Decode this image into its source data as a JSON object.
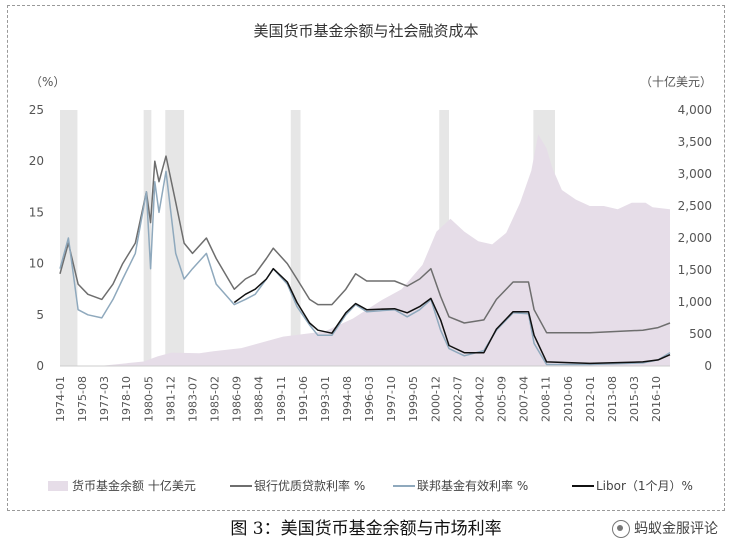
{
  "chart_data": {
    "type": "line",
    "title": "美国货币基金余额与社会融资成本",
    "left_axis": {
      "unit": "（%）",
      "ylim": [
        0,
        25
      ],
      "ticks": [
        "0",
        "5",
        "10",
        "15",
        "20",
        "25"
      ]
    },
    "right_axis": {
      "unit": "（十亿美元）",
      "ylim": [
        0,
        4000
      ],
      "ticks": [
        "0",
        "500",
        "1,000",
        "1,500",
        "2,000",
        "2,500",
        "3,000",
        "3,500",
        "4,000"
      ]
    },
    "x_ticks": [
      "1974-01",
      "1975-08",
      "1977-03",
      "1978-10",
      "1980-05",
      "1981-12",
      "1983-07",
      "1985-02",
      "1986-09",
      "1988-04",
      "1989-11",
      "1991-06",
      "1993-01",
      "1994-08",
      "1996-03",
      "1997-10",
      "1999-05",
      "2000-12",
      "2002-07",
      "2004-02",
      "2005-09",
      "2007-04",
      "2008-11",
      "2010-06",
      "2012-01",
      "2013-08",
      "2015-03",
      "2016-10"
    ],
    "x_range": [
      1974.0,
      2017.75
    ],
    "recession_bands": [
      [
        1974.0,
        1975.25
      ],
      [
        1980.0,
        1980.55
      ],
      [
        1981.55,
        1982.9
      ],
      [
        1990.55,
        1991.25
      ],
      [
        2001.2,
        2001.9
      ],
      [
        2007.95,
        2009.5
      ]
    ],
    "series": [
      {
        "name": "货币基金余额 十亿美元",
        "type": "area",
        "axis": "right",
        "color": "#e6dde8",
        "x": [
          1974,
          1977,
          1980,
          1981,
          1982,
          1984,
          1985,
          1987,
          1990,
          1993,
          1995,
          1997,
          1998.5,
          2000,
          2001,
          2002,
          2003,
          2004,
          2005,
          2006,
          2007,
          2007.8,
          2008.3,
          2008.9,
          2009.3,
          2010,
          2011,
          2012,
          2013,
          2014,
          2015,
          2016,
          2016.5,
          2017.75
        ],
        "values": [
          2,
          5,
          70,
          150,
          210,
          200,
          230,
          280,
          460,
          540,
          740,
          1020,
          1200,
          1580,
          2100,
          2300,
          2100,
          1950,
          1900,
          2080,
          2550,
          3050,
          3620,
          3400,
          3100,
          2750,
          2600,
          2500,
          2500,
          2450,
          2550,
          2550,
          2480,
          2450
        ]
      },
      {
        "name": "银行优质贷款利率 %",
        "type": "line",
        "axis": "left",
        "color": "#6e6e6e",
        "x": [
          1974,
          1974.6,
          1975.3,
          1976,
          1977,
          1977.8,
          1978.5,
          1979.4,
          1980.2,
          1980.5,
          1980.8,
          1981.1,
          1981.6,
          1982.3,
          1982.9,
          1983.5,
          1984.5,
          1985.2,
          1986.5,
          1987.3,
          1988,
          1988.8,
          1989.3,
          1990.3,
          1991,
          1991.9,
          1992.5,
          1993.5,
          1994.5,
          1995.2,
          1996,
          1998,
          1998.9,
          1999.8,
          2000.6,
          2001.3,
          2001.9,
          2003,
          2004.4,
          2005.3,
          2006.5,
          2007.6,
          2008,
          2008.9,
          2012,
          2015.8,
          2016.9,
          2017.75
        ],
        "values": [
          9,
          12,
          8,
          7,
          6.5,
          8,
          10,
          12,
          17,
          14,
          20,
          18,
          20.5,
          16,
          12,
          11,
          12.5,
          10.5,
          7.5,
          8.5,
          9,
          10.5,
          11.5,
          10,
          8.5,
          6.5,
          6,
          6,
          7.5,
          9,
          8.3,
          8.3,
          7.8,
          8.5,
          9.5,
          6.8,
          4.8,
          4.2,
          4.5,
          6.5,
          8.2,
          8.2,
          5.5,
          3.25,
          3.25,
          3.5,
          3.75,
          4.2
        ]
      },
      {
        "name": "联邦基金有效利率 %",
        "type": "line",
        "axis": "left",
        "color": "#8fa9bd",
        "x": [
          1974,
          1974.6,
          1975.3,
          1976,
          1977,
          1977.8,
          1978.5,
          1979.4,
          1980.2,
          1980.5,
          1980.8,
          1981.1,
          1981.6,
          1982.3,
          1982.9,
          1983.5,
          1984.5,
          1985.2,
          1986.5,
          1987.3,
          1988,
          1988.8,
          1989.3,
          1990.3,
          1991,
          1991.9,
          1992.5,
          1993.5,
          1994.5,
          1995.2,
          1996,
          1998,
          1998.9,
          1999.8,
          2000.6,
          2001.3,
          2001.9,
          2003,
          2004.4,
          2005.3,
          2006.5,
          2007.6,
          2008,
          2008.9,
          2012,
          2015.8,
          2016.9,
          2017.75
        ],
        "values": [
          9.5,
          12.5,
          5.5,
          5,
          4.7,
          6.5,
          8.5,
          11,
          17,
          9.5,
          18,
          15,
          19,
          11,
          8.5,
          9.5,
          11,
          8,
          6,
          6.5,
          7,
          8.5,
          9.5,
          8,
          5.8,
          4,
          3,
          3,
          5,
          6,
          5.3,
          5.5,
          4.8,
          5.5,
          6.5,
          3.5,
          1.7,
          1,
          1.5,
          3.5,
          5.2,
          5.1,
          2.2,
          0.15,
          0.15,
          0.3,
          0.6,
          1.3
        ]
      },
      {
        "name": "Libor（1个月）%",
        "type": "line",
        "axis": "left",
        "color": "#111111",
        "x": [
          1986.5,
          1987.3,
          1988,
          1988.8,
          1989.3,
          1990.3,
          1991,
          1991.9,
          1992.5,
          1993.5,
          1994.5,
          1995.2,
          1996,
          1998,
          1998.9,
          1999.8,
          2000.6,
          2001.3,
          2001.9,
          2003,
          2004.4,
          2005.3,
          2006.5,
          2007.6,
          2008,
          2008.9,
          2012,
          2015.8,
          2016.9,
          2017.75
        ],
        "values": [
          6.2,
          7,
          7.5,
          8.5,
          9.5,
          8.2,
          6.2,
          4.2,
          3.5,
          3.2,
          5.2,
          6.1,
          5.5,
          5.6,
          5.2,
          5.8,
          6.6,
          4.5,
          2,
          1.3,
          1.3,
          3.6,
          5.3,
          5.3,
          3,
          0.4,
          0.25,
          0.4,
          0.6,
          1.1
        ]
      }
    ],
    "legend": {
      "placement": "bottom",
      "entries": [
        "货币基金余额 十亿美元",
        "银行优质贷款利率 %",
        "联邦基金有效利率 %",
        "Libor（1个月）%"
      ]
    },
    "grid": false
  },
  "caption": "图 3：美国货币基金余额与市场利率",
  "watermark": "蚂蚁金服评论"
}
